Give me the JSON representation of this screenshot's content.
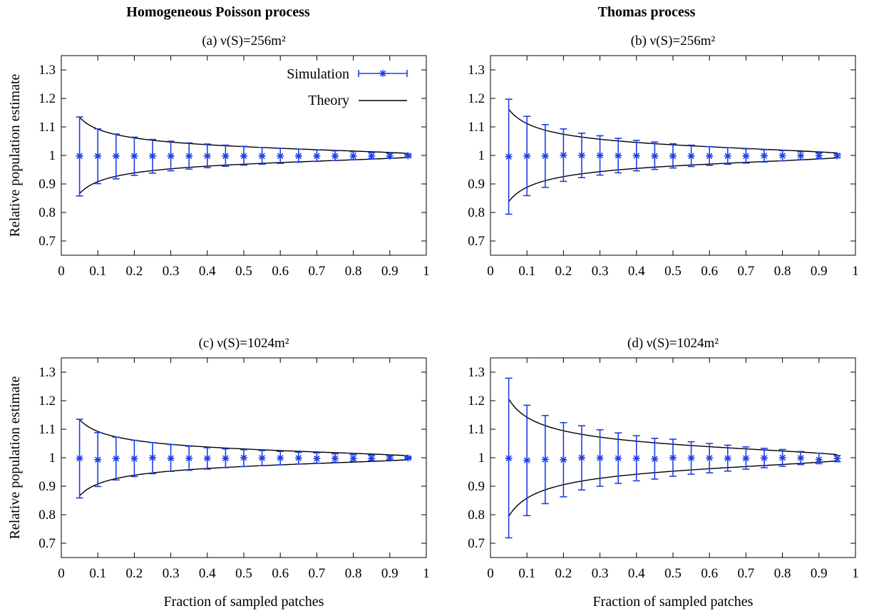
{
  "column_titles": [
    "Homogeneous Poisson process",
    "Thomas process"
  ],
  "panel_titles": [
    "(a)  ν(S)=256m²",
    "(b)  ν(S)=256m²",
    "(c)  ν(S)=1024m²",
    "(d)  ν(S)=1024m²"
  ],
  "legend": {
    "simulation": "Simulation",
    "theory": "Theory"
  },
  "colors": {
    "simulation": "#1f3ee6",
    "theory": "#000000"
  },
  "chart_data": [
    {
      "type": "line",
      "title": "(a)  ν(S)=256m²",
      "xlabel": "",
      "ylabel": "Relative population estimate",
      "xlim": [
        0,
        1
      ],
      "ylim": [
        0.65,
        1.35
      ],
      "xticks": [
        "0",
        "0.1",
        "0.2",
        "0.3",
        "0.4",
        "0.5",
        "0.6",
        "0.7",
        "0.8",
        "0.9",
        "1"
      ],
      "yticks": [
        "0.7",
        "0.8",
        "0.9",
        "1",
        "1.1",
        "1.2",
        "1.3"
      ],
      "legend": "top-right",
      "x": [
        0.05,
        0.1,
        0.15,
        0.2,
        0.25,
        0.3,
        0.35,
        0.4,
        0.45,
        0.5,
        0.55,
        0.6,
        0.65,
        0.7,
        0.75,
        0.8,
        0.85,
        0.9,
        0.95
      ],
      "series": [
        {
          "name": "Simulation",
          "values": [
            0.998,
            0.998,
            0.998,
            0.998,
            0.998,
            0.998,
            0.998,
            0.998,
            0.998,
            0.998,
            0.998,
            0.998,
            0.998,
            0.998,
            0.998,
            0.998,
            0.998,
            0.998,
            0.999
          ],
          "error_low": [
            0.858,
            0.901,
            0.918,
            0.93,
            0.938,
            0.946,
            0.952,
            0.957,
            0.962,
            0.966,
            0.969,
            0.972,
            0.976,
            0.979,
            0.982,
            0.985,
            0.988,
            0.991,
            0.994
          ],
          "error_high": [
            1.135,
            1.093,
            1.075,
            1.064,
            1.056,
            1.05,
            1.044,
            1.04,
            1.036,
            1.032,
            1.028,
            1.025,
            1.022,
            1.019,
            1.016,
            1.013,
            1.01,
            1.007,
            1.004
          ]
        },
        {
          "name": "Theory",
          "k": 0.0307
        }
      ]
    },
    {
      "type": "line",
      "title": "(b)  ν(S)=256m²",
      "xlabel": "",
      "ylabel": "",
      "xlim": [
        0,
        1
      ],
      "ylim": [
        0.65,
        1.35
      ],
      "xticks": [
        "0",
        "0.1",
        "0.2",
        "0.3",
        "0.4",
        "0.5",
        "0.6",
        "0.7",
        "0.8",
        "0.9",
        "1"
      ],
      "yticks": [
        "0.7",
        "0.8",
        "0.9",
        "1",
        "1.1",
        "1.2",
        "1.3"
      ],
      "x": [
        0.05,
        0.1,
        0.15,
        0.2,
        0.25,
        0.3,
        0.35,
        0.4,
        0.45,
        0.5,
        0.55,
        0.6,
        0.65,
        0.7,
        0.75,
        0.8,
        0.85,
        0.9,
        0.95
      ],
      "series": [
        {
          "name": "Simulation",
          "values": [
            0.996,
            0.998,
            0.998,
            1.001,
            1.0,
            1.0,
            0.999,
            0.999,
            0.998,
            0.998,
            0.998,
            0.998,
            0.998,
            0.998,
            0.999,
            0.999,
            0.999,
            0.999,
            0.999
          ],
          "error_low": [
            0.794,
            0.859,
            0.888,
            0.909,
            0.922,
            0.931,
            0.939,
            0.946,
            0.951,
            0.956,
            0.961,
            0.965,
            0.969,
            0.973,
            0.977,
            0.981,
            0.985,
            0.989,
            0.993
          ],
          "error_high": [
            1.197,
            1.137,
            1.108,
            1.093,
            1.078,
            1.069,
            1.06,
            1.053,
            1.047,
            1.041,
            1.036,
            1.031,
            1.027,
            1.023,
            1.02,
            1.017,
            1.013,
            1.009,
            1.005
          ]
        },
        {
          "name": "Theory",
          "k": 0.0372
        }
      ]
    },
    {
      "type": "line",
      "title": "(c)  ν(S)=1024m²",
      "xlabel": "Fraction of sampled patches",
      "ylabel": "Relative population estimate",
      "xlim": [
        0,
        1
      ],
      "ylim": [
        0.65,
        1.35
      ],
      "xticks": [
        "0",
        "0.1",
        "0.2",
        "0.3",
        "0.4",
        "0.5",
        "0.6",
        "0.7",
        "0.8",
        "0.9",
        "1"
      ],
      "yticks": [
        "0.7",
        "0.8",
        "0.9",
        "1",
        "1.1",
        "1.2",
        "1.3"
      ],
      "x": [
        0.05,
        0.1,
        0.15,
        0.2,
        0.25,
        0.3,
        0.35,
        0.4,
        0.45,
        0.5,
        0.55,
        0.6,
        0.65,
        0.7,
        0.75,
        0.8,
        0.85,
        0.9,
        0.95
      ],
      "series": [
        {
          "name": "Simulation",
          "values": [
            0.998,
            0.993,
            0.997,
            0.997,
            1.0,
            0.998,
            0.998,
            0.998,
            0.998,
            1.0,
            0.999,
            0.999,
            0.999,
            0.997,
            0.998,
            0.998,
            0.998,
            0.999,
            0.999
          ],
          "error_low": [
            0.859,
            0.899,
            0.922,
            0.934,
            0.944,
            0.952,
            0.956,
            0.96,
            0.965,
            0.969,
            0.972,
            0.975,
            0.978,
            0.981,
            0.984,
            0.987,
            0.99,
            0.993,
            0.996
          ],
          "error_high": [
            1.135,
            1.088,
            1.072,
            1.061,
            1.053,
            1.046,
            1.04,
            1.035,
            1.031,
            1.028,
            1.025,
            1.022,
            1.019,
            1.017,
            1.014,
            1.011,
            1.009,
            1.006,
            1.003
          ]
        },
        {
          "name": "Theory",
          "k": 0.0307
        }
      ]
    },
    {
      "type": "line",
      "title": "(d)  ν(S)=1024m²",
      "xlabel": "Fraction of sampled patches",
      "ylabel": "",
      "xlim": [
        0,
        1
      ],
      "ylim": [
        0.65,
        1.35
      ],
      "xticks": [
        "0",
        "0.1",
        "0.2",
        "0.3",
        "0.4",
        "0.5",
        "0.6",
        "0.7",
        "0.8",
        "0.9",
        "1"
      ],
      "yticks": [
        "0.7",
        "0.8",
        "0.9",
        "1",
        "1.1",
        "1.2",
        "1.3"
      ],
      "x": [
        0.05,
        0.1,
        0.15,
        0.2,
        0.25,
        0.3,
        0.35,
        0.4,
        0.45,
        0.5,
        0.55,
        0.6,
        0.65,
        0.7,
        0.75,
        0.8,
        0.85,
        0.9,
        0.95
      ],
      "series": [
        {
          "name": "Simulation",
          "values": [
            0.998,
            0.991,
            0.994,
            0.993,
            1.0,
            0.999,
            0.998,
            0.998,
            0.996,
            1.0,
            0.999,
            0.999,
            0.998,
            0.998,
            0.999,
            1.0,
            0.999,
            0.993,
            0.997
          ],
          "error_low": [
            0.719,
            0.797,
            0.839,
            0.863,
            0.887,
            0.9,
            0.91,
            0.919,
            0.925,
            0.935,
            0.942,
            0.947,
            0.953,
            0.96,
            0.965,
            0.97,
            0.976,
            0.979,
            0.986
          ],
          "error_high": [
            1.279,
            1.184,
            1.148,
            1.123,
            1.112,
            1.098,
            1.087,
            1.077,
            1.068,
            1.065,
            1.056,
            1.05,
            1.044,
            1.038,
            1.033,
            1.029,
            1.022,
            1.016,
            1.008
          ]
        },
        {
          "name": "Theory",
          "k": 0.0473
        }
      ]
    }
  ]
}
